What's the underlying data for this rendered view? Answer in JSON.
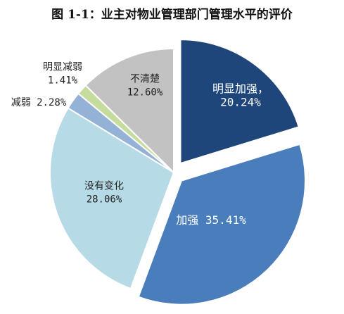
{
  "chart_data": {
    "type": "pie",
    "title": "图 1-1：业主对物业管理部门管理水平的评价",
    "slices": [
      {
        "name": "明显加强",
        "value": 20.24,
        "label_lines": [
          "明显加强，",
          "20.24%"
        ],
        "color": "#1f467a",
        "text_color": "#ffffff",
        "exploded": true
      },
      {
        "name": "加强",
        "value": 35.41,
        "label_lines": [
          "加强 35.41%"
        ],
        "color": "#4a7dbb",
        "text_color": "#ffffff",
        "exploded": true
      },
      {
        "name": "没有变化",
        "value": 28.06,
        "label_lines": [
          "没有变化",
          "28.06%"
        ],
        "color": "#b6dbe7",
        "text_color": "#222222",
        "exploded": false
      },
      {
        "name": "减弱",
        "value": 2.28,
        "label_lines": [
          "减弱 2.28%"
        ],
        "color": "#94b1d6",
        "text_color": "#222222",
        "exploded": false
      },
      {
        "name": "明显减弱",
        "value": 1.41,
        "label_lines": [
          "明显减弱",
          "1.41%"
        ],
        "color": "#c5dc9c",
        "text_color": "#222222",
        "exploded": false
      },
      {
        "name": "不清楚",
        "value": 12.6,
        "label_lines": [
          "不清楚",
          "12.60%"
        ],
        "color": "#c2c2c2",
        "text_color": "#222222",
        "exploded": false
      }
    ]
  }
}
